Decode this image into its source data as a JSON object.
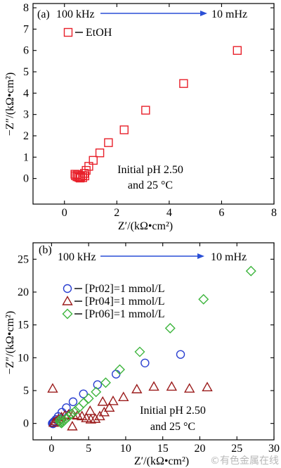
{
  "figure": {
    "watermark": "©有色金属在线"
  },
  "chart_data": [
    {
      "type": "scatter",
      "panel_label": "(a)",
      "xlabel": "Z′/(kΩ•cm²)",
      "ylabel": "−Z″/(kΩ•cm²)",
      "xlim": [
        -1.2,
        8
      ],
      "ylim": [
        -1.2,
        8.2
      ],
      "xticks": [
        0,
        2,
        4,
        6,
        8
      ],
      "yticks": [
        0,
        1,
        2,
        3,
        4,
        5,
        6,
        7,
        8
      ],
      "grid": false,
      "legend_position": "top-left",
      "frequency_range": {
        "start": "100 kHz",
        "end": "10 mHz",
        "arrow_color": "#2a4fd6"
      },
      "conditions": [
        "Initial pH 2.50",
        "and 25 °C"
      ],
      "series": [
        {
          "name": "EtOH",
          "marker": "square",
          "color": "#e8202a",
          "points": [
            [
              6.6,
              6.0
            ],
            [
              4.55,
              4.45
            ],
            [
              3.1,
              3.2
            ],
            [
              2.28,
              2.28
            ],
            [
              1.68,
              1.68
            ],
            [
              1.35,
              1.2
            ],
            [
              1.1,
              0.85
            ],
            [
              0.93,
              0.57
            ],
            [
              0.83,
              0.38
            ],
            [
              0.76,
              0.24
            ],
            [
              0.69,
              0.14
            ],
            [
              0.62,
              0.08
            ],
            [
              0.55,
              0.05
            ],
            [
              0.48,
              0.08
            ],
            [
              0.42,
              0.13
            ],
            [
              0.4,
              0.2
            ],
            [
              0.5,
              0.18
            ],
            [
              0.6,
              0.02
            ],
            [
              0.7,
              0.04
            ],
            [
              0.78,
              0.12
            ]
          ]
        }
      ]
    },
    {
      "type": "scatter",
      "panel_label": "(b)",
      "xlabel": "Z′/(kΩ•cm²)",
      "ylabel": "−Z″/(kΩ•cm²)",
      "xlim": [
        -2.5,
        30
      ],
      "ylim": [
        -2.5,
        27.5
      ],
      "xticks": [
        0,
        5,
        10,
        15,
        20,
        25,
        30
      ],
      "yticks": [
        0,
        5,
        10,
        15,
        20,
        25
      ],
      "grid": false,
      "legend_position": "top-left",
      "frequency_range": {
        "start": "100 kHz",
        "end": "10 mHz",
        "arrow_color": "#2a4fd6"
      },
      "conditions": [
        "Initial pH 2.50",
        "and 25 °C"
      ],
      "series": [
        {
          "name": "[Pr02]=1 mmol/L",
          "marker": "circle",
          "color": "#2a3fd0",
          "points": [
            [
              17.4,
              10.5
            ],
            [
              12.6,
              9.2
            ],
            [
              8.7,
              7.5
            ],
            [
              6.2,
              5.9
            ],
            [
              4.3,
              4.5
            ],
            [
              2.9,
              3.3
            ],
            [
              2.0,
              2.4
            ],
            [
              1.4,
              1.7
            ],
            [
              0.9,
              1.05
            ],
            [
              0.6,
              0.6
            ],
            [
              0.35,
              0.3
            ],
            [
              0.2,
              0.12
            ],
            [
              0.1,
              0.0
            ],
            [
              0.2,
              -0.05
            ],
            [
              0.3,
              0.05
            ]
          ]
        },
        {
          "name": "[Pr04]=1 mmol/L",
          "marker": "triangle",
          "color": "#9b1c1c",
          "points": [
            [
              0.15,
              5.3
            ],
            [
              21.0,
              5.5
            ],
            [
              18.6,
              5.3
            ],
            [
              16.2,
              5.6
            ],
            [
              13.8,
              5.6
            ],
            [
              11.5,
              5.2
            ],
            [
              9.7,
              4.0
            ],
            [
              8.3,
              3.4
            ],
            [
              6.9,
              3.3
            ],
            [
              7.8,
              2.4
            ],
            [
              7.1,
              1.7
            ],
            [
              6.5,
              1.1
            ],
            [
              5.9,
              0.7
            ],
            [
              5.3,
              0.6
            ],
            [
              4.7,
              0.8
            ],
            [
              4.1,
              1.1
            ],
            [
              3.5,
              1.2
            ],
            [
              2.9,
              1.3
            ],
            [
              2.3,
              1.35
            ],
            [
              1.8,
              1.2
            ],
            [
              1.35,
              0.95
            ],
            [
              0.95,
              0.65
            ],
            [
              0.6,
              0.35
            ],
            [
              0.3,
              0.1
            ],
            [
              2.8,
              -0.45
            ],
            [
              5.2,
              1.9
            ]
          ]
        },
        {
          "name": "[Pr06]=1 mmol/L",
          "marker": "diamond",
          "color": "#3db53d",
          "points": [
            [
              26.9,
              23.2
            ],
            [
              20.5,
              18.9
            ],
            [
              16.0,
              14.5
            ],
            [
              11.9,
              10.9
            ],
            [
              9.2,
              8.2
            ],
            [
              7.3,
              6.2
            ],
            [
              6.0,
              4.8
            ],
            [
              5.0,
              3.8
            ],
            [
              4.3,
              3.1
            ],
            [
              3.7,
              2.4
            ],
            [
              3.2,
              1.9
            ],
            [
              2.7,
              1.45
            ],
            [
              2.3,
              1.05
            ],
            [
              1.95,
              0.7
            ],
            [
              1.7,
              0.4
            ],
            [
              1.5,
              0.2
            ],
            [
              1.35,
              0.05
            ],
            [
              1.2,
              0.15
            ],
            [
              1.1,
              0.35
            ],
            [
              1.2,
              0.6
            ]
          ]
        }
      ]
    }
  ]
}
